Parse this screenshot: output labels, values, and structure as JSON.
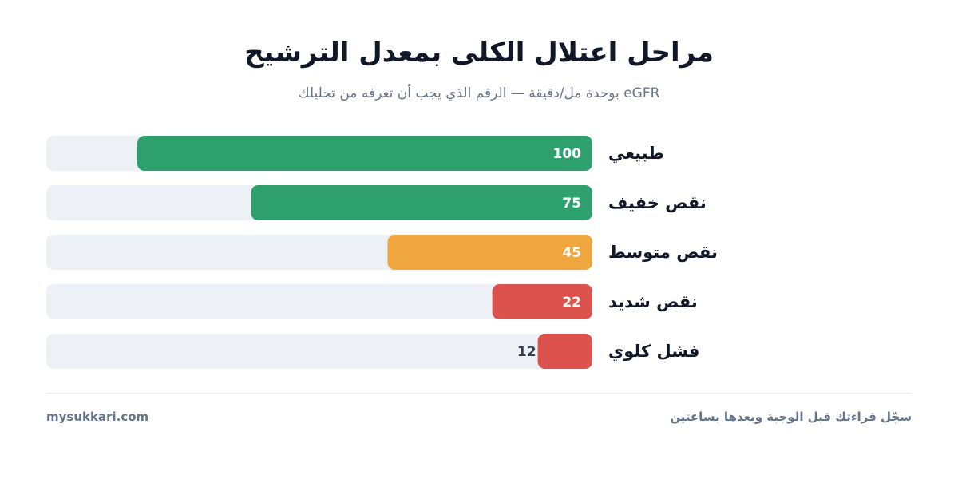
{
  "title": "مراحل اعتلال الكلى بمعدل الترشيح",
  "subtitle": "eGFR بوحدة مل/دقيقة — الرقم الذي يجب أن تعرفه من تحليلك",
  "footer": {
    "brand": "mysukkari.com",
    "note": "سجّل قراءتك قبل الوجبة وبعدها بساعتين"
  },
  "colors": {
    "track": "#edf0f4",
    "green": "#2ea06e",
    "orange": "#f0a63f",
    "red": "#dc534d",
    "label_light": "#ffffff",
    "label_dark": "#334155"
  },
  "chart_data": {
    "type": "bar",
    "orientation": "horizontal",
    "direction": "rtl",
    "categories": [
      "طبيعي",
      "نقص خفيف",
      "نقص متوسط",
      "نقص شديد",
      "فشل كلوي"
    ],
    "values": [
      100,
      75,
      45,
      22,
      12
    ],
    "value_labels": [
      "100",
      "75",
      "45",
      "22",
      "12"
    ],
    "bar_colors": [
      "#2ea06e",
      "#2ea06e",
      "#f0a63f",
      "#dc534d",
      "#dc534d"
    ],
    "xlim": [
      0,
      120
    ],
    "grid": false,
    "legend": "none"
  }
}
